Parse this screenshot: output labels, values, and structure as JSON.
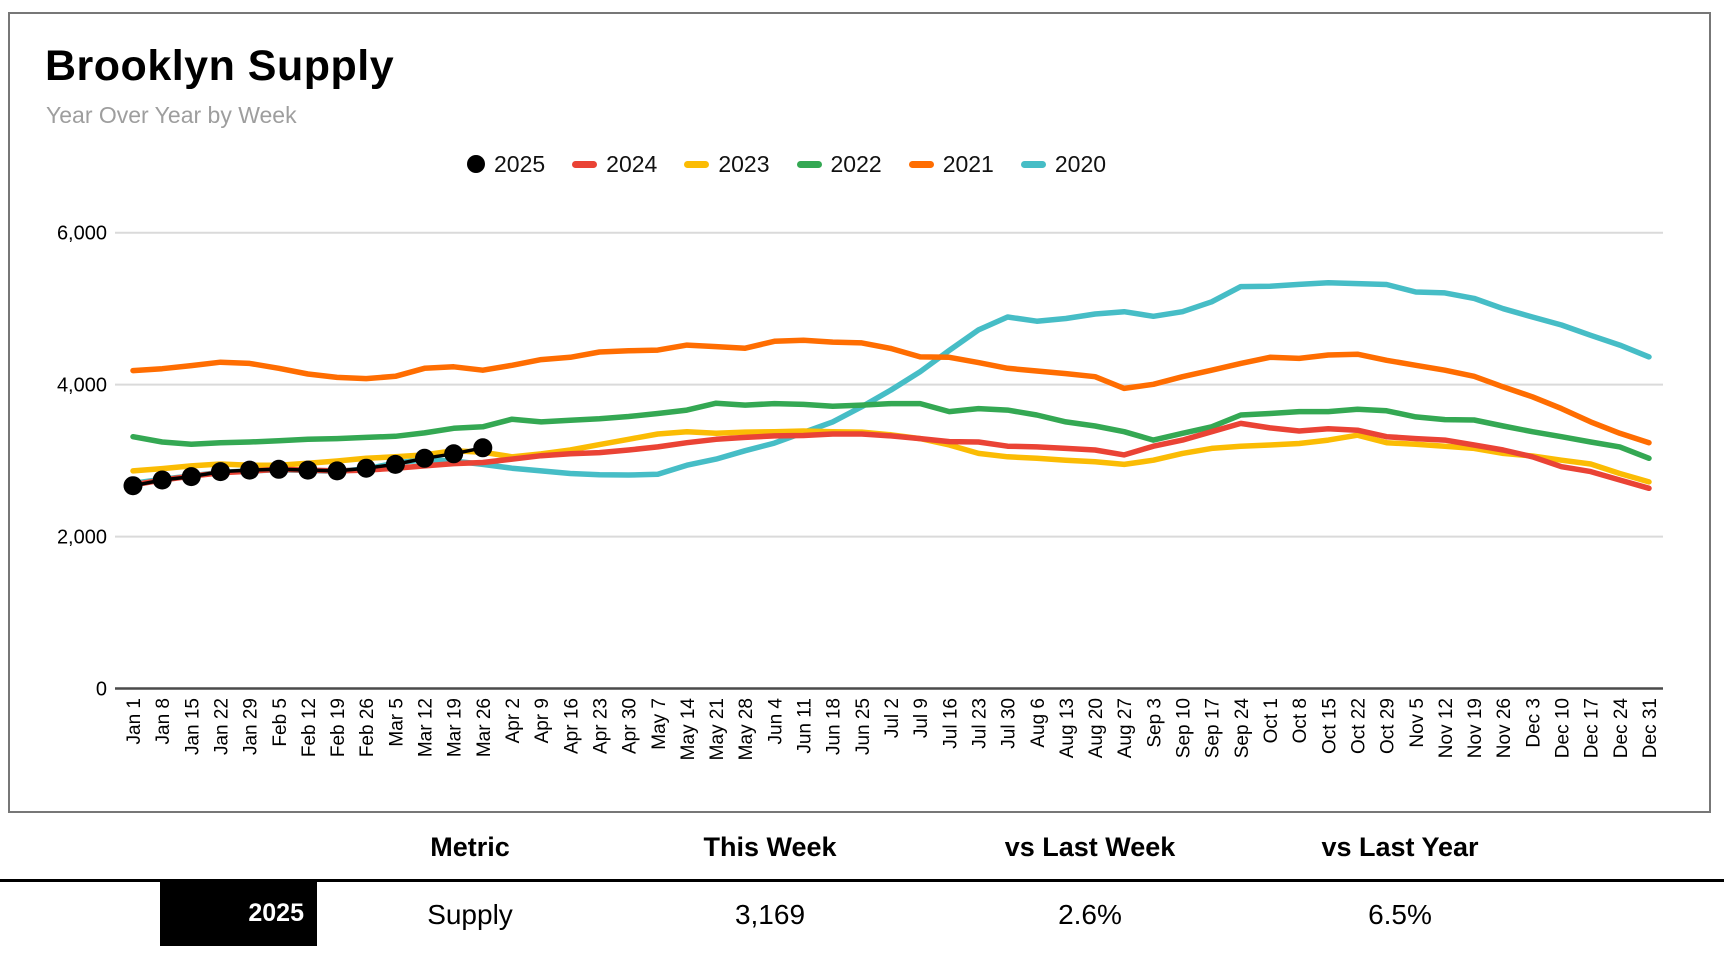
{
  "header": {
    "title": "Brooklyn Supply",
    "subtitle": "Year Over Year by Week"
  },
  "chart_data": {
    "type": "line",
    "title": "Brooklyn Supply",
    "subtitle": "Year Over Year by Week",
    "legend_position": "top",
    "grid": "horizontal",
    "y_axis": {
      "min": 0,
      "max": 6000,
      "tick_values": [
        0,
        2000,
        4000,
        6000
      ],
      "ticks": [
        "0",
        "2,000",
        "4,000",
        "6,000"
      ]
    },
    "x_labels": [
      "Jan 1",
      "Jan 8",
      "Jan 15",
      "Jan 22",
      "Jan 29",
      "Feb 5",
      "Feb 12",
      "Feb 19",
      "Feb 26",
      "Mar 5",
      "Mar 12",
      "Mar 19",
      "Mar 26",
      "Apr 2",
      "Apr 9",
      "Apr 16",
      "Apr 23",
      "Apr 30",
      "May 7",
      "May 14",
      "May 21",
      "May 28",
      "Jun 4",
      "Jun 11",
      "Jun 18",
      "Jun 25",
      "Jul 2",
      "Jul 9",
      "Jul 16",
      "Jul 23",
      "Jul 30",
      "Aug 6",
      "Aug 13",
      "Aug 20",
      "Aug 27",
      "Sep 3",
      "Sep 10",
      "Sep 17",
      "Sep 24",
      "Oct 1",
      "Oct 8",
      "Oct 15",
      "Oct 22",
      "Oct 29",
      "Nov 5",
      "Nov 12",
      "Nov 19",
      "Nov 26",
      "Dec 3",
      "Dec 10",
      "Dec 17",
      "Dec 24",
      "Dec 31"
    ],
    "series": [
      {
        "name": "2025",
        "color": "#000000",
        "marker": "circle",
        "values": [
          2670,
          2745,
          2790,
          2855,
          2875,
          2885,
          2875,
          2865,
          2900,
          2950,
          3030,
          3089,
          3169
        ]
      },
      {
        "name": "2024",
        "color": "#EA4335",
        "marker": "dash",
        "values": [
          2680,
          2745,
          2795,
          2840,
          2860,
          2885,
          2875,
          2865,
          2875,
          2900,
          2930,
          2960,
          2975,
          3020,
          3065,
          3090,
          3105,
          3140,
          3180,
          3235,
          3280,
          3305,
          3325,
          3330,
          3350,
          3350,
          3325,
          3290,
          3250,
          3245,
          3190,
          3180,
          3160,
          3140,
          3075,
          3190,
          3270,
          3380,
          3490,
          3430,
          3390,
          3420,
          3400,
          3315,
          3290,
          3270,
          3205,
          3140,
          3050,
          2920,
          2855,
          2745,
          2635
        ]
      },
      {
        "name": "2023",
        "color": "#FBBC04",
        "marker": "dash",
        "values": [
          2865,
          2895,
          2930,
          2955,
          2940,
          2940,
          2965,
          2995,
          3030,
          3050,
          3075,
          3130,
          3110,
          3050,
          3090,
          3140,
          3210,
          3280,
          3350,
          3380,
          3360,
          3375,
          3380,
          3390,
          3380,
          3375,
          3340,
          3290,
          3205,
          3095,
          3050,
          3030,
          3005,
          2985,
          2950,
          3005,
          3095,
          3160,
          3190,
          3205,
          3225,
          3270,
          3335,
          3235,
          3215,
          3190,
          3160,
          3095,
          3060,
          3005,
          2955,
          2830,
          2720
        ]
      },
      {
        "name": "2022",
        "color": "#34A853",
        "marker": "dash",
        "values": [
          3315,
          3245,
          3215,
          3235,
          3245,
          3260,
          3280,
          3290,
          3305,
          3320,
          3365,
          3425,
          3445,
          3545,
          3510,
          3530,
          3550,
          3580,
          3620,
          3665,
          3755,
          3730,
          3750,
          3740,
          3715,
          3730,
          3750,
          3750,
          3645,
          3685,
          3665,
          3600,
          3510,
          3455,
          3380,
          3270,
          3360,
          3445,
          3600,
          3620,
          3645,
          3645,
          3675,
          3655,
          3575,
          3540,
          3535,
          3455,
          3380,
          3315,
          3245,
          3180,
          3030
        ]
      },
      {
        "name": "2021",
        "color": "#FF6D01",
        "marker": "dash",
        "values": [
          4185,
          4210,
          4250,
          4295,
          4280,
          4215,
          4140,
          4095,
          4080,
          4110,
          4215,
          4235,
          4190,
          4255,
          4330,
          4360,
          4430,
          4445,
          4455,
          4520,
          4500,
          4480,
          4570,
          4585,
          4560,
          4550,
          4475,
          4365,
          4360,
          4290,
          4215,
          4180,
          4145,
          4105,
          3950,
          4005,
          4105,
          4190,
          4280,
          4360,
          4345,
          4390,
          4400,
          4320,
          4255,
          4190,
          4110,
          3970,
          3840,
          3685,
          3510,
          3360,
          3235
        ]
      },
      {
        "name": "2020",
        "color": "#46BDC6",
        "marker": "dash",
        "values": [
          2700,
          2755,
          2800,
          2845,
          2865,
          2880,
          2870,
          2860,
          2890,
          2970,
          3010,
          2995,
          2950,
          2900,
          2865,
          2830,
          2815,
          2810,
          2820,
          2940,
          3020,
          3130,
          3230,
          3370,
          3510,
          3710,
          3930,
          4170,
          4450,
          4720,
          4890,
          4835,
          4870,
          4930,
          4960,
          4900,
          4960,
          5090,
          5290,
          5295,
          5320,
          5340,
          5330,
          5318,
          5220,
          5208,
          5135,
          5000,
          4890,
          4785,
          4650,
          4520,
          4365
        ]
      }
    ]
  },
  "summary_table": {
    "columns": [
      "Metric",
      "This Week",
      "vs Last Week",
      "vs Last Year"
    ],
    "rows": [
      {
        "year": "2025",
        "metric": "Supply",
        "this_week": "3,169",
        "vs_last_week": "2.6%",
        "vs_last_year": "6.5%"
      }
    ]
  }
}
